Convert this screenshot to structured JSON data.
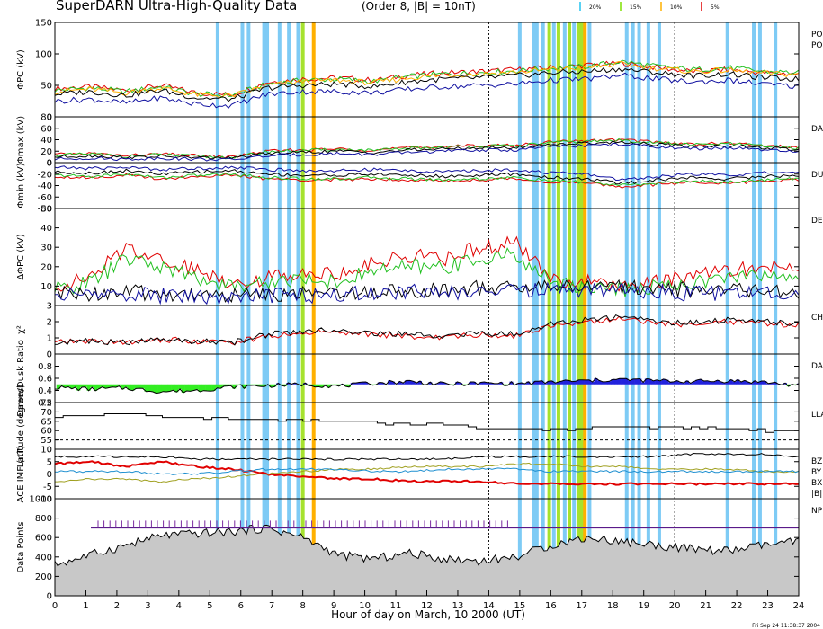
{
  "header": {
    "title": "SuperDARN Ultra-High-Quality Data",
    "subtitle": "(Order 8, |B| = 10nT)",
    "legend": [
      {
        "label": "20%",
        "color": "#22c3f0"
      },
      {
        "label": "15%",
        "color": "#7fe000"
      },
      {
        "label": "10%",
        "color": "#ffb000"
      },
      {
        "label": "5%",
        "color": "#e00000"
      }
    ]
  },
  "footer": {
    "xlabel": "Hour of day on March, 10 2000 (UT)",
    "stamp": "Fri Sep 24 11:38:37 2004"
  },
  "chart_data": {
    "type": "line",
    "title": "SuperDARN Ultra-High-Quality Data",
    "xlabel": "Hour of day on March, 10 2000 (UT)",
    "xlim": [
      0,
      24
    ],
    "xticks": [
      "0",
      "1",
      "2",
      "3",
      "4",
      "5",
      "6",
      "7",
      "8",
      "9",
      "10",
      "11",
      "12",
      "13",
      "14",
      "15",
      "16",
      "17",
      "18",
      "19",
      "20",
      "21",
      "22",
      "23",
      "24"
    ],
    "grid": false,
    "dashed_markers_hours": [
      14.0,
      20.0
    ],
    "quality_bands": [
      {
        "hour": 5.25,
        "color": "#7ecbf5"
      },
      {
        "hour": 6.05,
        "color": "#7ecbf5"
      },
      {
        "hour": 6.25,
        "color": "#7ecbf5"
      },
      {
        "hour": 6.75,
        "color": "#7ecbf5"
      },
      {
        "hour": 6.85,
        "color": "#7ecbf5"
      },
      {
        "hour": 7.25,
        "color": "#7ecbf5"
      },
      {
        "hour": 7.55,
        "color": "#7ecbf5"
      },
      {
        "hour": 7.85,
        "color": "#7ecbf5"
      },
      {
        "hour": 8.0,
        "color": "#a6e22e"
      },
      {
        "hour": 8.35,
        "color": "#ffb000"
      },
      {
        "hour": 15.0,
        "color": "#7ecbf5"
      },
      {
        "hour": 15.45,
        "color": "#7ecbf5"
      },
      {
        "hour": 15.55,
        "color": "#7ecbf5"
      },
      {
        "hour": 15.75,
        "color": "#7ecbf5"
      },
      {
        "hour": 15.95,
        "color": "#a6e22e"
      },
      {
        "hour": 16.1,
        "color": "#7ecbf5"
      },
      {
        "hour": 16.25,
        "color": "#a6e22e"
      },
      {
        "hour": 16.45,
        "color": "#7ecbf5"
      },
      {
        "hour": 16.6,
        "color": "#a6e22e"
      },
      {
        "hour": 16.75,
        "color": "#7ecbf5"
      },
      {
        "hour": 16.9,
        "color": "#a6e22e"
      },
      {
        "hour": 17.0,
        "color": "#a6e22e"
      },
      {
        "hour": 17.1,
        "color": "#ffb000"
      },
      {
        "hour": 17.25,
        "color": "#7ecbf5"
      },
      {
        "hour": 18.45,
        "color": "#7ecbf5"
      },
      {
        "hour": 18.65,
        "color": "#7ecbf5"
      },
      {
        "hour": 18.85,
        "color": "#7ecbf5"
      },
      {
        "hour": 19.15,
        "color": "#7ecbf5"
      },
      {
        "hour": 19.5,
        "color": "#7ecbf5"
      },
      {
        "hour": 21.7,
        "color": "#7ecbf5"
      },
      {
        "hour": 22.55,
        "color": "#7ecbf5"
      },
      {
        "hour": 22.75,
        "color": "#7ecbf5"
      },
      {
        "hour": 23.25,
        "color": "#7ecbf5"
      }
    ],
    "panels": [
      {
        "id": "phi-pc",
        "ylabel": "ΦPC (kV)",
        "ylim": [
          0,
          150
        ],
        "yticks": [
          0,
          50,
          100,
          150
        ],
        "right_labels": [
          "PO",
          "PO"
        ],
        "series": [
          {
            "color": "#e00000",
            "values": [
              45,
              48,
              42,
              50,
              38,
              35,
              55,
              60,
              62,
              58,
              66,
              70,
              72,
              75,
              78,
              82,
              85,
              78,
              72,
              75,
              70,
              68
            ]
          },
          {
            "color": "#22c020",
            "values": [
              42,
              46,
              40,
              48,
              36,
              34,
              52,
              58,
              60,
              56,
              64,
              68,
              70,
              73,
              77,
              80,
              88,
              80,
              75,
              78,
              72,
              70
            ]
          },
          {
            "color": "#ffb000",
            "values": [
              40,
              44,
              38,
              46,
              35,
              33,
              50,
              56,
              58,
              54,
              62,
              66,
              68,
              71,
              75,
              78,
              84,
              77,
              72,
              74,
              69,
              67
            ]
          },
          {
            "color": "#000000",
            "values": [
              36,
              40,
              34,
              42,
              30,
              28,
              46,
              50,
              52,
              48,
              56,
              60,
              62,
              65,
              70,
              72,
              76,
              70,
              65,
              68,
              62,
              60
            ]
          },
          {
            "color": "#1010a0",
            "values": [
              25,
              28,
              22,
              30,
              20,
              18,
              36,
              40,
              40,
              38,
              44,
              48,
              50,
              52,
              58,
              60,
              66,
              60,
              55,
              58,
              52,
              48
            ]
          }
        ]
      },
      {
        "id": "phi-max",
        "ylabel": "Φmax (kV)",
        "ylim": [
          0,
          80
        ],
        "yticks": [
          0,
          20,
          40,
          60,
          80
        ],
        "right_labels": [
          "DA"
        ],
        "series": [
          {
            "color": "#e00000",
            "values": [
              14,
              16,
              12,
              15,
              12,
              10,
              20,
              22,
              24,
              22,
              26,
              28,
              30,
              30,
              36,
              38,
              40,
              36,
              32,
              34,
              30,
              26
            ]
          },
          {
            "color": "#22c020",
            "values": [
              13,
              15,
              11,
              14,
              11,
              9,
              19,
              21,
              23,
              21,
              25,
              27,
              29,
              29,
              35,
              37,
              39,
              35,
              31,
              33,
              29,
              25
            ]
          },
          {
            "color": "#000000",
            "values": [
              10,
              12,
              9,
              11,
              9,
              8,
              16,
              18,
              20,
              18,
              22,
              24,
              26,
              26,
              32,
              34,
              36,
              32,
              28,
              30,
              26,
              22
            ]
          },
          {
            "color": "#1010a0",
            "values": [
              6,
              8,
              6,
              8,
              6,
              5,
              12,
              14,
              16,
              14,
              18,
              20,
              22,
              22,
              28,
              30,
              32,
              28,
              24,
              26,
              22,
              18
            ]
          }
        ]
      },
      {
        "id": "phi-min",
        "ylabel": "Φmin (kV)",
        "ylim": [
          -80,
          0
        ],
        "yticks": [
          0,
          -20,
          -40,
          -60,
          -80
        ],
        "right_labels": [
          "DU"
        ],
        "series": [
          {
            "color": "#e00000",
            "values": [
              -24,
              -26,
              -22,
              -28,
              -24,
              -22,
              -28,
              -30,
              -30,
              -28,
              -30,
              -32,
              -30,
              -28,
              -34,
              -36,
              -42,
              -38,
              -34,
              -36,
              -32,
              -30
            ]
          },
          {
            "color": "#22c020",
            "values": [
              -22,
              -24,
              -20,
              -26,
              -22,
              -20,
              -26,
              -28,
              -28,
              -26,
              -28,
              -30,
              -28,
              -26,
              -32,
              -34,
              -40,
              -36,
              -32,
              -34,
              -30,
              -28
            ]
          },
          {
            "color": "#000000",
            "values": [
              -16,
              -18,
              -14,
              -20,
              -16,
              -14,
              -20,
              -22,
              -22,
              -20,
              -22,
              -24,
              -22,
              -20,
              -26,
              -28,
              -36,
              -30,
              -26,
              -28,
              -24,
              -22
            ]
          },
          {
            "color": "#1010a0",
            "values": [
              -8,
              -10,
              -8,
              -12,
              -10,
              -8,
              -12,
              -14,
              -14,
              -12,
              -14,
              -16,
              -14,
              -12,
              -18,
              -20,
              -30,
              -24,
              -20,
              -22,
              -18,
              -16
            ]
          }
        ]
      },
      {
        "id": "delta-phi-pc",
        "ylabel": "ΔΦPC (kV)",
        "ylim": [
          0,
          50
        ],
        "yticks": [
          10,
          20,
          30,
          40,
          50
        ],
        "right_labels": [
          "DE"
        ],
        "series": [
          {
            "color": "#e00000",
            "values": [
              10,
              14,
              30,
              24,
              18,
              12,
              14,
              18,
              16,
              22,
              26,
              24,
              30,
              32,
              14,
              12,
              10,
              12,
              16,
              18,
              20,
              18
            ]
          },
          {
            "color": "#22c020",
            "values": [
              8,
              12,
              24,
              20,
              14,
              10,
              12,
              14,
              12,
              18,
              20,
              20,
              24,
              26,
              12,
              10,
              8,
              10,
              12,
              14,
              16,
              14
            ]
          },
          {
            "color": "#000000",
            "values": [
              6,
              6,
              7,
              6,
              6,
              5,
              6,
              6,
              7,
              7,
              8,
              8,
              9,
              9,
              10,
              10,
              10,
              9,
              8,
              8,
              8,
              7
            ]
          },
          {
            "color": "#1010a0",
            "values": [
              5,
              6,
              6,
              5,
              5,
              4,
              5,
              5,
              6,
              6,
              7,
              7,
              7,
              8,
              8,
              8,
              8,
              7,
              6,
              6,
              6,
              6
            ]
          }
        ]
      },
      {
        "id": "chi-squared",
        "ylabel": "χ²",
        "ylim": [
          0,
          3
        ],
        "yticks": [
          0,
          1,
          2,
          3
        ],
        "right_labels": [
          "CH"
        ],
        "series": [
          {
            "color": "#e00000",
            "values": [
              0.7,
              0.8,
              0.7,
              0.9,
              0.8,
              0.7,
              1.1,
              1.3,
              1.4,
              1.2,
              1.1,
              1.0,
              1.2,
              1.1,
              1.8,
              2.0,
              2.2,
              1.9,
              1.8,
              2.0,
              1.9,
              1.8
            ]
          },
          {
            "color": "#000000",
            "values": [
              0.7,
              0.8,
              0.7,
              0.9,
              0.8,
              0.7,
              1.2,
              1.4,
              1.5,
              1.3,
              1.2,
              1.1,
              1.3,
              1.2,
              1.9,
              2.1,
              2.3,
              2.0,
              1.9,
              2.1,
              2.0,
              1.9
            ]
          }
        ]
      },
      {
        "id": "dawn-dusk-ratio",
        "ylabel": "Dawn/Dusk Ratio",
        "ylim": [
          0.2,
          1.0
        ],
        "yticks": [
          0.2,
          0.4,
          0.6,
          0.8
        ],
        "right_labels": [
          "DA"
        ],
        "baseline": 0.5,
        "series": [
          {
            "color": "#000000",
            "values": [
              0.45,
              0.42,
              0.44,
              0.38,
              0.4,
              0.46,
              0.48,
              0.5,
              0.47,
              0.52,
              0.55,
              0.5,
              0.52,
              0.51,
              0.54,
              0.56,
              0.58,
              0.56,
              0.55,
              0.56,
              0.54,
              0.48
            ]
          }
        ]
      },
      {
        "id": "latitude",
        "ylabel": "Latitude (degrees)",
        "ylim": [
          50,
          75
        ],
        "yticks": [
          55,
          60,
          65,
          70,
          75
        ],
        "right_labels": [
          "LLA"
        ],
        "reference": 55,
        "series": [
          {
            "color": "#000000",
            "values": [
              68,
              68,
              69,
              67,
              67,
              66,
              66,
              65,
              65,
              64,
              64,
              63,
              61,
              61,
              61,
              61,
              62,
              62,
              61,
              61,
              60,
              60
            ]
          }
        ]
      },
      {
        "id": "ace-imf",
        "ylabel": "ACE IMF (nT)",
        "ylim": [
          -10,
          10
        ],
        "yticks": [
          -10,
          -5,
          0,
          5,
          10
        ],
        "right_labels": [
          "BZ",
          "BY",
          "BX",
          "|B|"
        ],
        "series": [
          {
            "name": "|B|",
            "color": "#000000",
            "values": [
              7,
              7,
              7,
              7,
              6,
              6,
              6,
              6,
              6,
              6,
              6,
              6,
              7,
              7,
              7,
              7,
              7,
              7,
              8,
              8,
              8,
              7
            ]
          },
          {
            "name": "Bz",
            "color": "#e00000",
            "values": [
              4,
              5,
              3,
              5,
              3,
              2,
              0,
              -1,
              -2,
              -2,
              -3,
              -3,
              -3,
              -4,
              -4,
              -4,
              -4,
              -4,
              -4,
              -4,
              -4,
              -4
            ]
          },
          {
            "name": "By",
            "color": "#a0a020",
            "values": [
              -3,
              -2,
              -2,
              -3,
              -2,
              -1,
              0,
              1,
              2,
              2,
              3,
              3,
              3,
              4,
              4,
              3,
              3,
              2,
              2,
              2,
              1,
              1
            ]
          },
          {
            "name": "Bx",
            "color": "#1e8fd0",
            "values": [
              1,
              1,
              1,
              0,
              0,
              1,
              2,
              2,
              2,
              1,
              1,
              2,
              2,
              2,
              1,
              1,
              1,
              1,
              1,
              1,
              1,
              1
            ]
          }
        ]
      },
      {
        "id": "data-points",
        "ylabel": "Data Points",
        "ylim": [
          0,
          1000
        ],
        "yticks": [
          0,
          200,
          400,
          600,
          800,
          1000
        ],
        "right_labels": [
          "NP"
        ],
        "threshold": 700,
        "series": [
          {
            "color": "#000000",
            "values": [
              320,
              420,
              520,
              620,
              640,
              660,
              700,
              600,
              420,
              380,
              440,
              380,
              360,
              400,
              520,
              600,
              560,
              520,
              480,
              460,
              520,
              560
            ]
          }
        ]
      }
    ]
  }
}
